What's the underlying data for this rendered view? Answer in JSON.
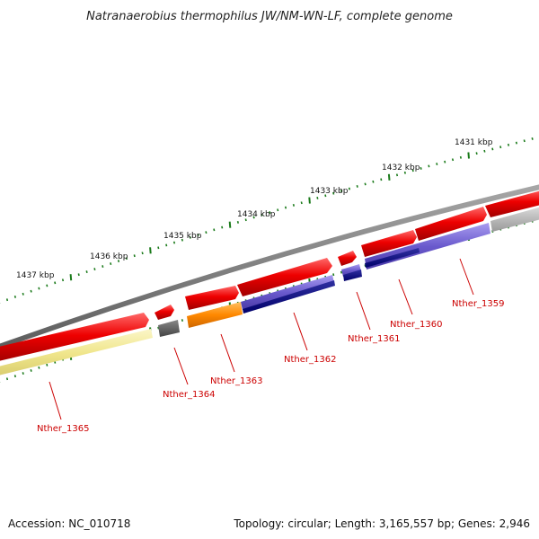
{
  "title": "Natranaerobius thermophilus JW/NM-WN-LF, complete genome",
  "footer": {
    "accession": "Accession: NC_010718",
    "summary": "Topology: circular; Length: 3,165,557 bp; Genes: 2,946"
  },
  "ruler": [
    "1431 kbp",
    "1432 kbp",
    "1433 kbp",
    "1434 kbp",
    "1435 kbp",
    "1436 kbp",
    "1437 kbp"
  ],
  "genes": [
    "Nther_1359",
    "Nther_1360",
    "Nther_1361",
    "Nther_1362",
    "Nther_1363",
    "Nther_1364",
    "Nther_1365"
  ],
  "colors": {
    "backbone": "#7a7a7a",
    "cds": "#ee0000",
    "gene_label": "#cc0000",
    "tick": "#1a7a1a",
    "purple": "#6a5acd",
    "navy": "#00007f",
    "orange": "#ff8800",
    "yellow": "#f0e68c",
    "dark_grey": "#555555",
    "light_grey": "#bbbbbb"
  }
}
